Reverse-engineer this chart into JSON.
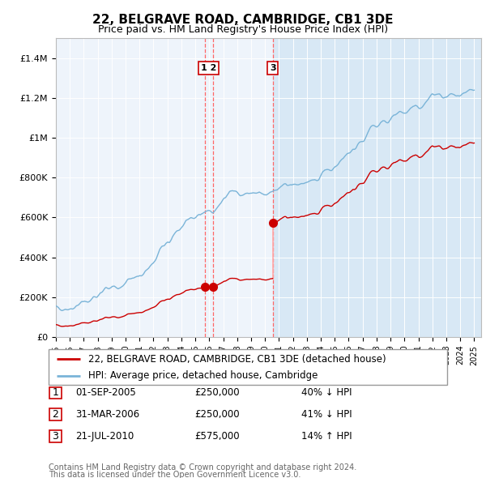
{
  "title": "22, BELGRAVE ROAD, CAMBRIDGE, CB1 3DE",
  "subtitle": "Price paid vs. HM Land Registry's House Price Index (HPI)",
  "ylabel_ticks": [
    "£0",
    "£200K",
    "£400K",
    "£600K",
    "£800K",
    "£1M",
    "£1.2M",
    "£1.4M"
  ],
  "ylim": [
    0,
    1500000
  ],
  "yticks": [
    0,
    200000,
    400000,
    600000,
    800000,
    1000000,
    1200000,
    1400000
  ],
  "hpi_color": "#7ab4d8",
  "price_color": "#cc0000",
  "vline_color": "#ff6666",
  "background_color": "#dce9f5",
  "plot_bg": "#eef4fb",
  "highlight_bg": "#d8e8f5",
  "transaction1": {
    "date_str": "01-SEP-2005",
    "price": 250000,
    "hpi_pct": "40% ↓ HPI",
    "x_year": 2005.67
  },
  "transaction2": {
    "date_str": "31-MAR-2006",
    "price": 250000,
    "hpi_pct": "41% ↓ HPI",
    "x_year": 2006.25
  },
  "transaction3": {
    "date_str": "21-JUL-2010",
    "price": 575000,
    "hpi_pct": "14% ↑ HPI",
    "x_year": 2010.55
  },
  "legend_label_price": "22, BELGRAVE ROAD, CAMBRIDGE, CB1 3DE (detached house)",
  "legend_label_hpi": "HPI: Average price, detached house, Cambridge",
  "footer1": "Contains HM Land Registry data © Crown copyright and database right 2024.",
  "footer2": "This data is licensed under the Open Government Licence v3.0.",
  "xmin": 1995,
  "xmax": 2025.5
}
